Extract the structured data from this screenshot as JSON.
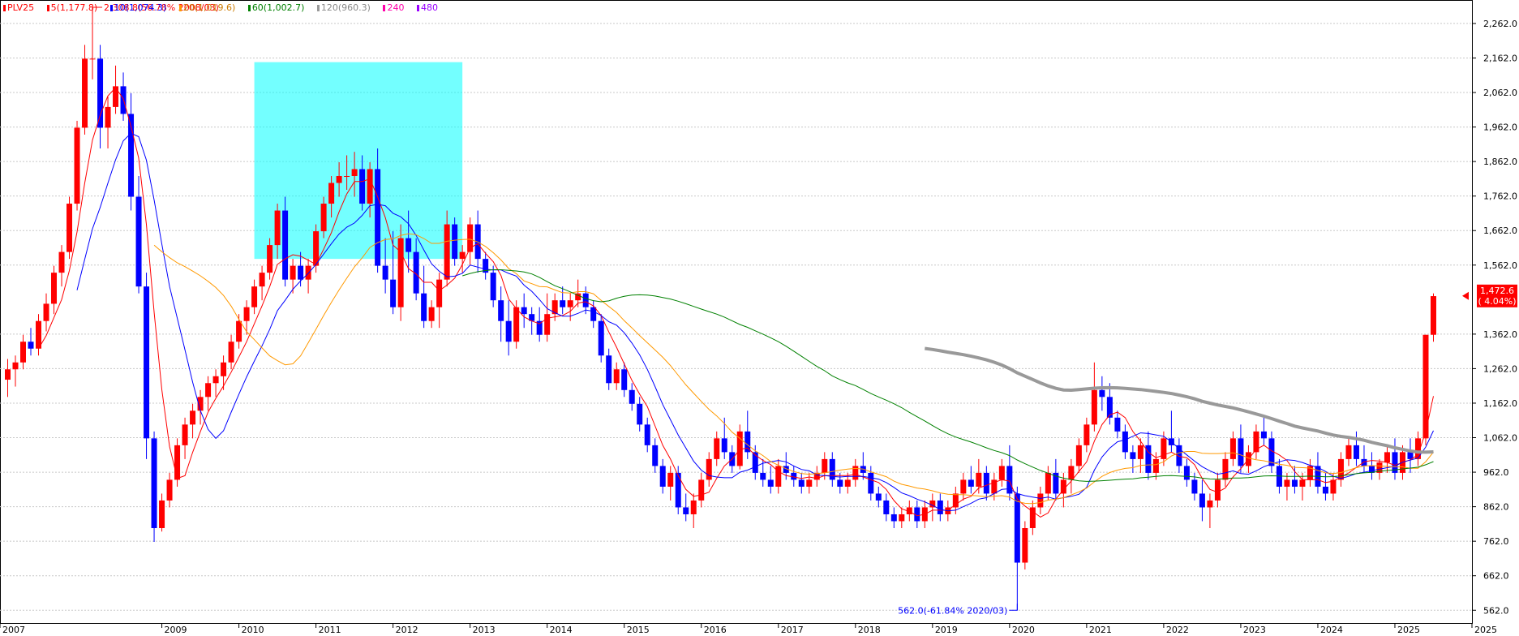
{
  "legend": {
    "symbol": "PLV25",
    "ma5": "5(1,177.8)",
    "ma10": "10(1,074.3)",
    "ma20": "20(1,019.6)",
    "ma60": "60(1,002.7)",
    "ma120": "120(960.3)",
    "ma240": "240",
    "ma480": "480"
  },
  "colors": {
    "up": "#ff0000",
    "down": "#0000ff",
    "ma5": "#ff0000",
    "ma10": "#0000ff",
    "ma20": "#ff9900",
    "ma60": "#008000",
    "ma120": "#999999",
    "ma240": "#ff00aa",
    "ma480": "#9900ff",
    "highlight_box": "#00ffff"
  },
  "chart_data": {
    "type": "candlestick",
    "ylim": [
      525,
      2330
    ],
    "y_ticks": [
      "2,262.0",
      "2,162.0",
      "2,062.0",
      "1,962.0",
      "1,862.0",
      "1,762.0",
      "1,662.0",
      "1,562.0",
      "1,362.0",
      "1,262.0",
      "1,162.0",
      "1,062.0",
      "962.0",
      "862.0",
      "762.0",
      "662.0",
      "562.0"
    ],
    "y_tick_values": [
      2262,
      2162,
      2062,
      1962,
      1862,
      1762,
      1662,
      1562,
      1362,
      1262,
      1162,
      1062,
      962,
      862,
      762,
      662,
      562
    ],
    "x_labels": [
      "2007",
      "2009",
      "2010",
      "2011",
      "2012",
      "2013",
      "2014",
      "2015",
      "2016",
      "2017",
      "2018",
      "2019",
      "2020",
      "2021",
      "2022",
      "2023",
      "2024",
      "2025",
      "2025"
    ],
    "x_label_years": [
      2006.9,
      2009,
      2010,
      2011,
      2012,
      2013,
      2014,
      2015,
      2016,
      2017,
      2018,
      2019,
      2020,
      2021,
      2022,
      2023,
      2024,
      2025,
      2026
    ],
    "high_annotation": "2,308.8(56.78% 2008/03)",
    "low_annotation": "562.0(-61.84% 2020/03)",
    "last_price": "1,472.6",
    "last_change": "( 4.04%)",
    "last_value": 1472.6,
    "ohlc_monthly_approx": [
      [
        2007.0,
        1230,
        1290,
        1180,
        1260
      ],
      [
        2007.1,
        1260,
        1300,
        1210,
        1280
      ],
      [
        2007.2,
        1280,
        1360,
        1260,
        1340
      ],
      [
        2007.3,
        1340,
        1380,
        1300,
        1320
      ],
      [
        2007.4,
        1320,
        1420,
        1300,
        1400
      ],
      [
        2007.5,
        1400,
        1480,
        1370,
        1450
      ],
      [
        2007.6,
        1450,
        1560,
        1420,
        1540
      ],
      [
        2007.7,
        1540,
        1620,
        1500,
        1600
      ],
      [
        2007.8,
        1600,
        1760,
        1580,
        1740
      ],
      [
        2007.9,
        1740,
        1980,
        1720,
        1960
      ],
      [
        2008.0,
        1960,
        2200,
        1940,
        2160
      ],
      [
        2008.1,
        2160,
        2308,
        2100,
        2160
      ],
      [
        2008.2,
        2160,
        2200,
        1900,
        1960
      ],
      [
        2008.3,
        1960,
        2050,
        1900,
        2020
      ],
      [
        2008.4,
        2020,
        2140,
        2000,
        2080
      ],
      [
        2008.5,
        2080,
        2120,
        1980,
        2000
      ],
      [
        2008.6,
        2000,
        2060,
        1720,
        1760
      ],
      [
        2008.7,
        1760,
        1820,
        1480,
        1500
      ],
      [
        2008.8,
        1500,
        1540,
        1000,
        1060
      ],
      [
        2008.9,
        1060,
        1080,
        760,
        800
      ],
      [
        2009.0,
        800,
        900,
        790,
        880
      ],
      [
        2009.1,
        880,
        960,
        860,
        940
      ],
      [
        2009.2,
        940,
        1060,
        920,
        1040
      ],
      [
        2009.3,
        1040,
        1120,
        1000,
        1100
      ],
      [
        2009.4,
        1100,
        1160,
        1060,
        1140
      ],
      [
        2009.5,
        1140,
        1200,
        1100,
        1180
      ],
      [
        2009.6,
        1180,
        1240,
        1140,
        1220
      ],
      [
        2009.7,
        1220,
        1260,
        1180,
        1240
      ],
      [
        2009.8,
        1240,
        1300,
        1200,
        1280
      ],
      [
        2009.9,
        1280,
        1360,
        1260,
        1340
      ],
      [
        2010.0,
        1340,
        1420,
        1320,
        1400
      ],
      [
        2010.1,
        1400,
        1460,
        1360,
        1440
      ],
      [
        2010.2,
        1440,
        1520,
        1420,
        1500
      ],
      [
        2010.3,
        1500,
        1560,
        1460,
        1540
      ],
      [
        2010.4,
        1540,
        1640,
        1520,
        1620
      ],
      [
        2010.5,
        1620,
        1740,
        1580,
        1720
      ],
      [
        2010.6,
        1720,
        1760,
        1500,
        1520
      ],
      [
        2010.7,
        1520,
        1580,
        1480,
        1560
      ],
      [
        2010.8,
        1560,
        1600,
        1500,
        1520
      ],
      [
        2010.9,
        1520,
        1580,
        1480,
        1560
      ],
      [
        2011.0,
        1560,
        1680,
        1540,
        1660
      ],
      [
        2011.1,
        1660,
        1760,
        1640,
        1740
      ],
      [
        2011.2,
        1740,
        1820,
        1700,
        1800
      ],
      [
        2011.3,
        1800,
        1860,
        1760,
        1820
      ],
      [
        2011.4,
        1820,
        1880,
        1780,
        1820
      ],
      [
        2011.5,
        1820,
        1890,
        1760,
        1840
      ],
      [
        2011.6,
        1840,
        1880,
        1720,
        1740
      ],
      [
        2011.7,
        1740,
        1860,
        1700,
        1840
      ],
      [
        2011.8,
        1840,
        1900,
        1540,
        1560
      ],
      [
        2011.9,
        1560,
        1640,
        1480,
        1520
      ],
      [
        2012.0,
        1520,
        1660,
        1420,
        1440
      ],
      [
        2012.1,
        1440,
        1680,
        1400,
        1640
      ],
      [
        2012.2,
        1640,
        1720,
        1540,
        1600
      ],
      [
        2012.3,
        1600,
        1640,
        1460,
        1480
      ],
      [
        2012.4,
        1480,
        1560,
        1380,
        1400
      ],
      [
        2012.5,
        1400,
        1460,
        1380,
        1440
      ],
      [
        2012.6,
        1440,
        1540,
        1380,
        1520
      ],
      [
        2012.7,
        1520,
        1720,
        1500,
        1680
      ],
      [
        2012.8,
        1680,
        1700,
        1560,
        1580
      ],
      [
        2012.9,
        1580,
        1620,
        1540,
        1600
      ],
      [
        2013.0,
        1600,
        1700,
        1560,
        1680
      ],
      [
        2013.1,
        1680,
        1720,
        1540,
        1580
      ],
      [
        2013.2,
        1580,
        1600,
        1520,
        1540
      ],
      [
        2013.3,
        1540,
        1560,
        1440,
        1460
      ],
      [
        2013.4,
        1460,
        1500,
        1340,
        1400
      ],
      [
        2013.5,
        1400,
        1460,
        1300,
        1340
      ],
      [
        2013.6,
        1340,
        1460,
        1320,
        1440
      ],
      [
        2013.7,
        1440,
        1480,
        1380,
        1420
      ],
      [
        2013.8,
        1420,
        1440,
        1360,
        1400
      ],
      [
        2013.9,
        1400,
        1440,
        1340,
        1360
      ],
      [
        2014.0,
        1360,
        1480,
        1340,
        1420
      ],
      [
        2014.1,
        1420,
        1480,
        1400,
        1460
      ],
      [
        2014.2,
        1460,
        1500,
        1420,
        1440
      ],
      [
        2014.3,
        1440,
        1480,
        1400,
        1460
      ],
      [
        2014.4,
        1460,
        1520,
        1440,
        1480
      ],
      [
        2014.5,
        1480,
        1500,
        1420,
        1440
      ],
      [
        2014.6,
        1440,
        1460,
        1380,
        1400
      ],
      [
        2014.7,
        1400,
        1420,
        1280,
        1300
      ],
      [
        2014.8,
        1300,
        1320,
        1200,
        1220
      ],
      [
        2014.9,
        1220,
        1280,
        1200,
        1260
      ],
      [
        2015.0,
        1260,
        1280,
        1180,
        1200
      ],
      [
        2015.1,
        1200,
        1220,
        1140,
        1160
      ],
      [
        2015.2,
        1160,
        1180,
        1080,
        1100
      ],
      [
        2015.3,
        1100,
        1120,
        1020,
        1040
      ],
      [
        2015.4,
        1040,
        1060,
        960,
        980
      ],
      [
        2015.5,
        980,
        1000,
        900,
        920
      ],
      [
        2015.6,
        920,
        980,
        880,
        960
      ],
      [
        2015.7,
        960,
        980,
        840,
        860
      ],
      [
        2015.8,
        860,
        900,
        820,
        840
      ],
      [
        2015.9,
        840,
        900,
        800,
        880
      ],
      [
        2016.0,
        880,
        960,
        860,
        940
      ],
      [
        2016.1,
        940,
        1020,
        920,
        1000
      ],
      [
        2016.2,
        1000,
        1080,
        980,
        1060
      ],
      [
        2016.3,
        1060,
        1120,
        1000,
        1020
      ],
      [
        2016.4,
        1020,
        1040,
        960,
        980
      ],
      [
        2016.5,
        980,
        1100,
        970,
        1080
      ],
      [
        2016.6,
        1080,
        1140,
        1000,
        1020
      ],
      [
        2016.7,
        1020,
        1040,
        940,
        960
      ],
      [
        2016.8,
        960,
        1000,
        920,
        940
      ],
      [
        2016.9,
        940,
        980,
        900,
        920
      ],
      [
        2017.0,
        920,
        1000,
        900,
        980
      ],
      [
        2017.1,
        980,
        1020,
        940,
        960
      ],
      [
        2017.2,
        960,
        980,
        920,
        940
      ],
      [
        2017.3,
        940,
        960,
        900,
        920
      ],
      [
        2017.4,
        920,
        960,
        900,
        940
      ],
      [
        2017.5,
        940,
        980,
        920,
        960
      ],
      [
        2017.6,
        960,
        1020,
        940,
        1000
      ],
      [
        2017.7,
        1000,
        1020,
        920,
        940
      ],
      [
        2017.8,
        940,
        960,
        900,
        920
      ],
      [
        2017.9,
        920,
        960,
        900,
        940
      ],
      [
        2018.0,
        940,
        1000,
        920,
        980
      ],
      [
        2018.1,
        980,
        1020,
        940,
        960
      ],
      [
        2018.2,
        960,
        980,
        880,
        900
      ],
      [
        2018.3,
        900,
        920,
        860,
        880
      ],
      [
        2018.4,
        880,
        900,
        820,
        840
      ],
      [
        2018.5,
        840,
        860,
        800,
        820
      ],
      [
        2018.6,
        820,
        860,
        800,
        840
      ],
      [
        2018.7,
        840,
        880,
        820,
        860
      ],
      [
        2018.8,
        860,
        880,
        800,
        820
      ],
      [
        2018.9,
        820,
        880,
        800,
        860
      ],
      [
        2019.0,
        860,
        900,
        820,
        880
      ],
      [
        2019.1,
        880,
        900,
        820,
        840
      ],
      [
        2019.2,
        840,
        880,
        820,
        860
      ],
      [
        2019.3,
        860,
        920,
        840,
        900
      ],
      [
        2019.4,
        900,
        960,
        880,
        940
      ],
      [
        2019.5,
        940,
        980,
        900,
        920
      ],
      [
        2019.6,
        920,
        1000,
        900,
        960
      ],
      [
        2019.7,
        960,
        980,
        880,
        900
      ],
      [
        2019.8,
        900,
        960,
        880,
        940
      ],
      [
        2019.9,
        940,
        1000,
        920,
        980
      ],
      [
        2020.0,
        980,
        1040,
        880,
        900
      ],
      [
        2020.1,
        900,
        920,
        562,
        700
      ],
      [
        2020.2,
        700,
        820,
        680,
        800
      ],
      [
        2020.3,
        800,
        880,
        780,
        860
      ],
      [
        2020.4,
        860,
        920,
        840,
        900
      ],
      [
        2020.5,
        900,
        980,
        880,
        960
      ],
      [
        2020.6,
        960,
        1000,
        880,
        900
      ],
      [
        2020.7,
        900,
        960,
        860,
        940
      ],
      [
        2020.8,
        940,
        1000,
        900,
        980
      ],
      [
        2020.9,
        980,
        1060,
        960,
        1040
      ],
      [
        2021.0,
        1040,
        1120,
        1020,
        1100
      ],
      [
        2021.1,
        1100,
        1280,
        1080,
        1200
      ],
      [
        2021.2,
        1200,
        1240,
        1140,
        1180
      ],
      [
        2021.3,
        1180,
        1220,
        1100,
        1120
      ],
      [
        2021.4,
        1120,
        1140,
        1060,
        1080
      ],
      [
        2021.5,
        1080,
        1100,
        1000,
        1020
      ],
      [
        2021.6,
        1020,
        1040,
        960,
        1000
      ],
      [
        2021.7,
        1000,
        1060,
        960,
        1040
      ],
      [
        2021.8,
        1040,
        1080,
        940,
        960
      ],
      [
        2021.9,
        960,
        1020,
        940,
        1000
      ],
      [
        2022.0,
        1000,
        1080,
        980,
        1060
      ],
      [
        2022.1,
        1060,
        1140,
        1020,
        1040
      ],
      [
        2022.2,
        1040,
        1060,
        960,
        980
      ],
      [
        2022.3,
        980,
        1000,
        920,
        940
      ],
      [
        2022.4,
        940,
        960,
        880,
        900
      ],
      [
        2022.5,
        900,
        940,
        820,
        860
      ],
      [
        2022.6,
        860,
        900,
        800,
        880
      ],
      [
        2022.7,
        880,
        960,
        860,
        940
      ],
      [
        2022.8,
        940,
        1020,
        920,
        1000
      ],
      [
        2022.9,
        1000,
        1080,
        980,
        1060
      ],
      [
        2023.0,
        1060,
        1100,
        960,
        980
      ],
      [
        2023.1,
        980,
        1040,
        960,
        1020
      ],
      [
        2023.2,
        1020,
        1100,
        1000,
        1080
      ],
      [
        2023.3,
        1080,
        1120,
        1040,
        1060
      ],
      [
        2023.4,
        1060,
        1080,
        960,
        980
      ],
      [
        2023.5,
        980,
        1000,
        900,
        920
      ],
      [
        2023.6,
        920,
        960,
        880,
        940
      ],
      [
        2023.7,
        940,
        980,
        900,
        920
      ],
      [
        2023.8,
        920,
        960,
        880,
        940
      ],
      [
        2023.9,
        940,
        1000,
        920,
        980
      ],
      [
        2024.0,
        980,
        1020,
        900,
        920
      ],
      [
        2024.1,
        920,
        960,
        880,
        900
      ],
      [
        2024.2,
        900,
        960,
        880,
        940
      ],
      [
        2024.3,
        940,
        1020,
        920,
        1000
      ],
      [
        2024.4,
        1000,
        1060,
        980,
        1040
      ],
      [
        2024.5,
        1040,
        1080,
        980,
        1000
      ],
      [
        2024.6,
        1000,
        1040,
        960,
        980
      ],
      [
        2024.7,
        980,
        1020,
        940,
        960
      ],
      [
        2024.8,
        960,
        1000,
        940,
        990
      ],
      [
        2024.9,
        990,
        1040,
        960,
        1020
      ],
      [
        2025.0,
        1020,
        1060,
        940,
        960
      ],
      [
        2025.1,
        960,
        1040,
        940,
        1020
      ],
      [
        2025.2,
        1020,
        1060,
        960,
        1000
      ],
      [
        2025.3,
        1000,
        1080,
        980,
        1060
      ],
      [
        2025.4,
        1060,
        1360,
        1040,
        1360
      ],
      [
        2025.5,
        1360,
        1480,
        1340,
        1472
      ]
    ]
  }
}
